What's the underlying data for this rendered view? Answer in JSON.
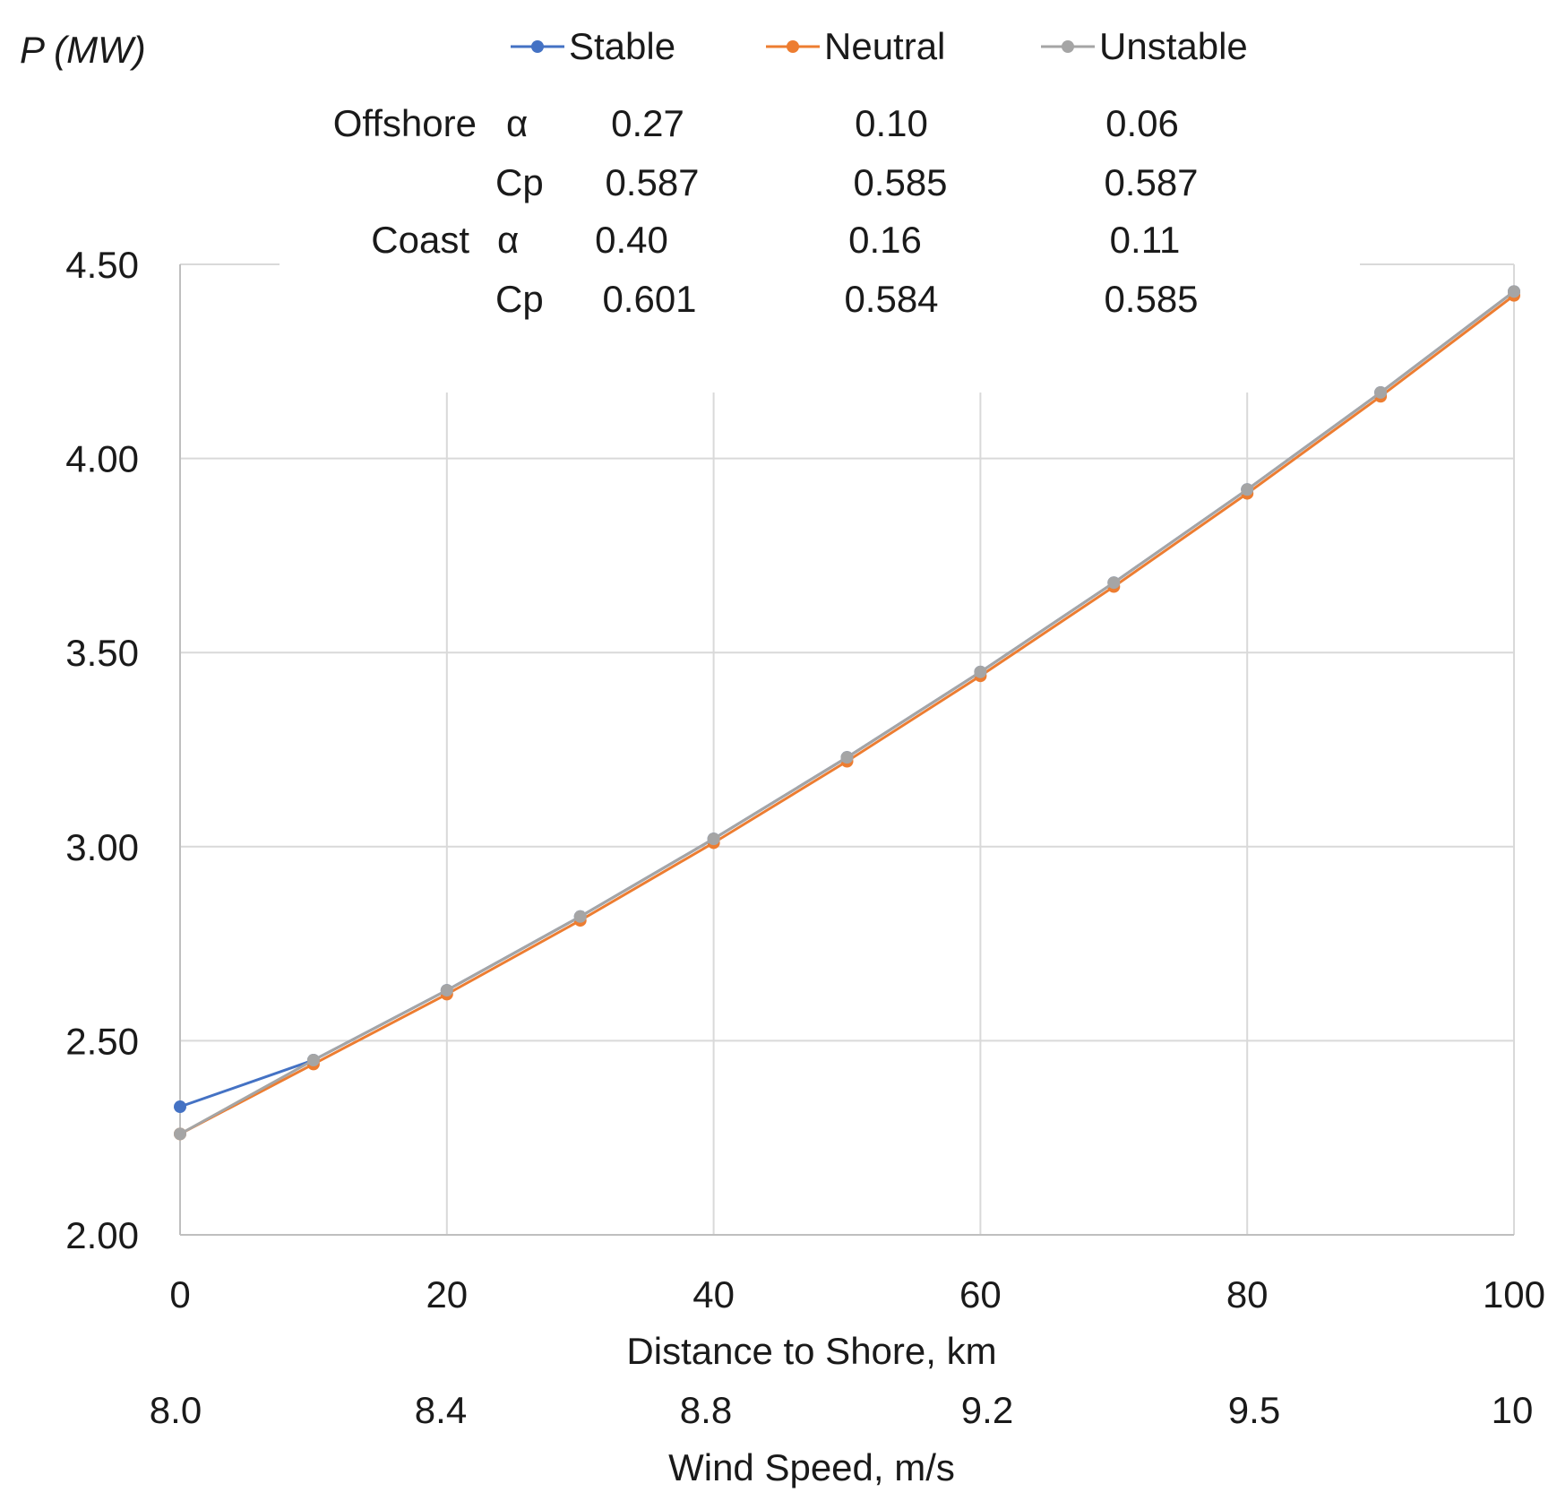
{
  "chart_data": {
    "type": "line",
    "ylabel": "P (MW)",
    "xlabel": "Distance to Shore, km",
    "x2label": "Wind Speed, m/s",
    "xlim": [
      0,
      100
    ],
    "ylim": [
      2.0,
      4.5
    ],
    "grid": true,
    "legend_position": "top",
    "x": [
      0,
      10,
      20,
      30,
      40,
      50,
      60,
      70,
      80,
      90,
      100
    ],
    "x_ticks": [
      "0",
      "20",
      "40",
      "60",
      "80",
      "100"
    ],
    "x2_ticks": [
      "8.0",
      "8.4",
      "8.8",
      "9.2",
      "9.5",
      "10"
    ],
    "y_ticks": [
      "2.00",
      "2.50",
      "3.00",
      "3.50",
      "4.00",
      "4.50"
    ],
    "series": [
      {
        "name": "Stable",
        "color": "#4472C4",
        "values": [
          2.33,
          2.45,
          2.63,
          2.82,
          3.02,
          3.23,
          3.45,
          3.68,
          3.92,
          4.17,
          4.43
        ]
      },
      {
        "name": "Neutral",
        "color": "#ED7D31",
        "values": [
          2.26,
          2.44,
          2.62,
          2.81,
          3.01,
          3.22,
          3.44,
          3.67,
          3.91,
          4.16,
          4.42
        ]
      },
      {
        "name": "Unstable",
        "color": "#A5A5A5",
        "values": [
          2.26,
          2.45,
          2.63,
          2.82,
          3.02,
          3.23,
          3.45,
          3.68,
          3.92,
          4.17,
          4.43
        ]
      }
    ],
    "parameter_table": {
      "rows": [
        {
          "group": "Offshore",
          "param": "α",
          "values": [
            "0.27",
            "0.10",
            "0.06"
          ]
        },
        {
          "group": "",
          "param": "Cp",
          "values": [
            "0.587",
            "0.585",
            "0.587"
          ]
        },
        {
          "group": "Coast",
          "param": "α",
          "values": [
            "0.40",
            "0.16",
            "0.11"
          ]
        },
        {
          "group": "",
          "param": "Cp",
          "values": [
            "0.601",
            "0.584",
            "0.585"
          ]
        }
      ]
    }
  }
}
